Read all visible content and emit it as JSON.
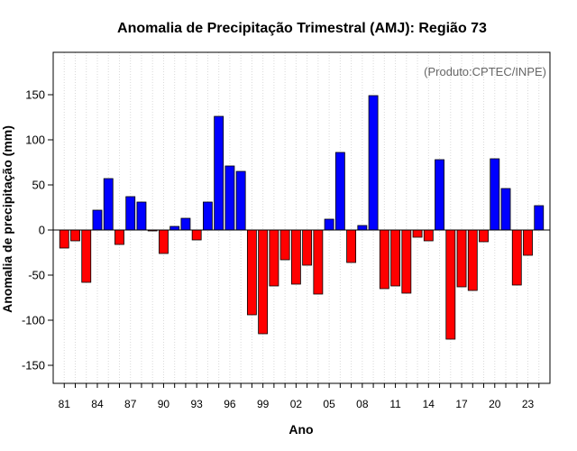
{
  "chart_data": {
    "type": "bar",
    "title": "Anomalia de Precipitação Trimestral (AMJ): Região 73",
    "xlabel": "Ano",
    "ylabel": "Anomalia de precipitação (mm)",
    "credit": "(Produto:CPTEC/INPE)",
    "ylim": [
      -170,
      197
    ],
    "yticks": [
      -150,
      -100,
      -50,
      0,
      50,
      100,
      150
    ],
    "xtick_labels": [
      "81",
      "84",
      "87",
      "90",
      "93",
      "96",
      "99",
      "02",
      "05",
      "08",
      "11",
      "14",
      "17",
      "20",
      "23"
    ],
    "grid": true,
    "categories": [
      "1981",
      "1982",
      "1983",
      "1984",
      "1985",
      "1986",
      "1987",
      "1988",
      "1989",
      "1990",
      "1991",
      "1992",
      "1993",
      "1994",
      "1995",
      "1996",
      "1997",
      "1998",
      "1999",
      "2000",
      "2001",
      "2002",
      "2003",
      "2004",
      "2005",
      "2006",
      "2007",
      "2008",
      "2009",
      "2010",
      "2011",
      "2012",
      "2013",
      "2014",
      "2015",
      "2016",
      "2017",
      "2018",
      "2019",
      "2020",
      "2021",
      "2022",
      "2023",
      "2024"
    ],
    "values": [
      -20,
      -12,
      -58,
      22,
      57,
      -16,
      37,
      31,
      -1,
      -26,
      4,
      13,
      -11,
      31,
      126,
      71,
      65,
      -94,
      -115,
      -62,
      -33,
      -60,
      -39,
      -71,
      12,
      86,
      -36,
      5,
      149,
      -65,
      -62,
      -70,
      -8,
      -12,
      78,
      -121,
      -63,
      -67,
      -13,
      79,
      46,
      -61,
      -28,
      27
    ],
    "colors": {
      "positive": "#0000ff",
      "negative": "#ff0000"
    }
  }
}
